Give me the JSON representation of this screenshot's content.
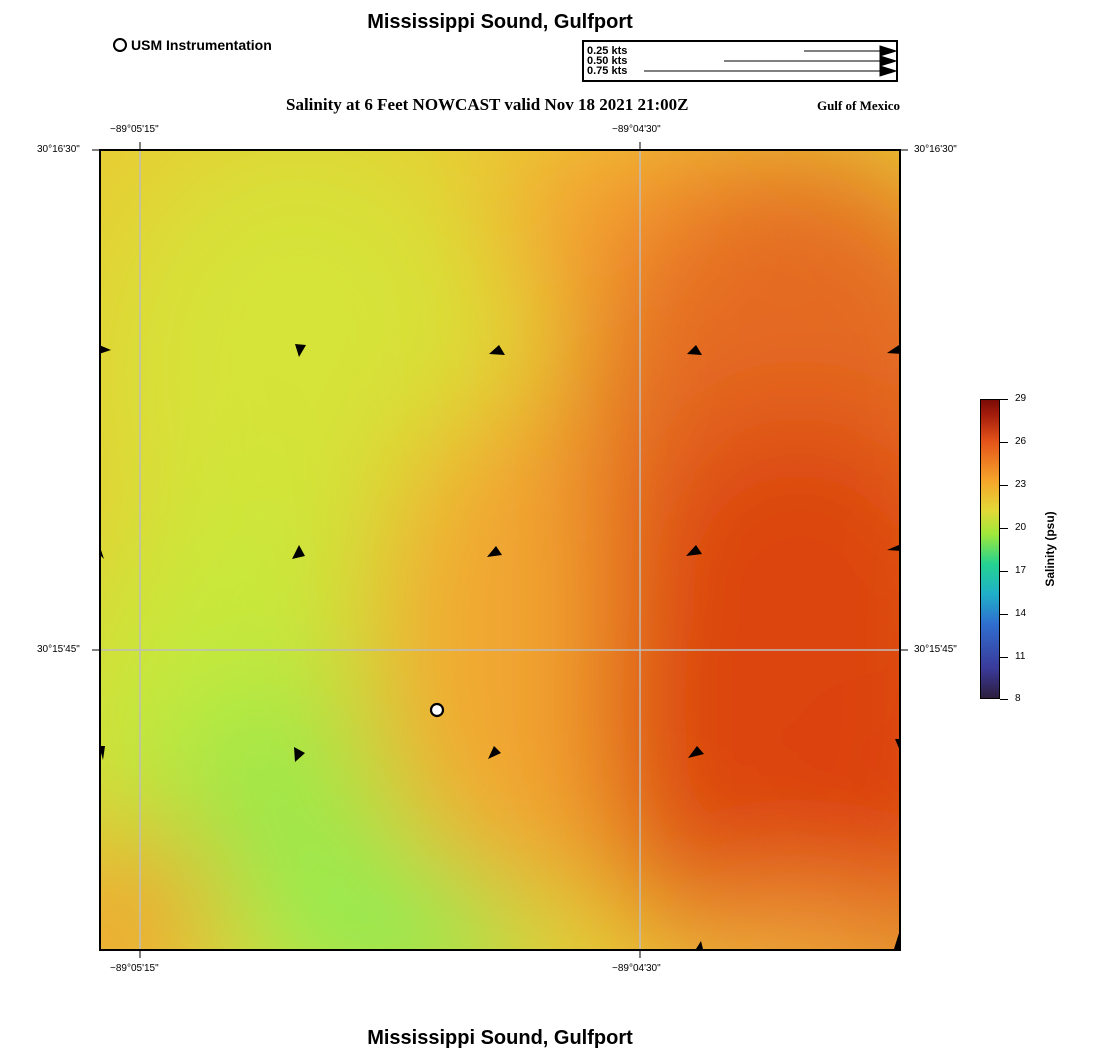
{
  "header": {
    "title": "Mississippi Sound, Gulfport",
    "subtitle": "Salinity at 6 Feet NOWCAST valid Nov 18 2021 21:00Z",
    "region": "Gulf of Mexico"
  },
  "footer": {
    "title": "Mississippi Sound, Gulfport"
  },
  "legend": {
    "station_label": "USM Instrumentation",
    "station_icon": "open-circle-icon"
  },
  "current_scale": {
    "labels": [
      "0.25 kts",
      "0.50 kts",
      "0.75 kts"
    ],
    "speeds_kts": [
      0.25,
      0.5,
      0.75
    ]
  },
  "axes": {
    "x_ticks": [
      "−89°05'15\"",
      "−89°04'30\""
    ],
    "y_ticks": [
      "30°16'30\"",
      "30°15'45\""
    ]
  },
  "colorbar": {
    "title": "Salinity (psu)",
    "ticks": [
      "29",
      "26",
      "23",
      "20",
      "17",
      "14",
      "11",
      "8"
    ],
    "range": [
      8,
      29
    ],
    "colors": [
      "#2d1e3e",
      "#3a3a9a",
      "#2f6fd0",
      "#1fb0c8",
      "#25d390",
      "#9fe83a",
      "#e3d838",
      "#f5a52a",
      "#e4541a",
      "#a41c0c",
      "#7a0b06"
    ]
  },
  "colors": {
    "grid": "#bdbdbd",
    "arrows": "#000000"
  }
}
